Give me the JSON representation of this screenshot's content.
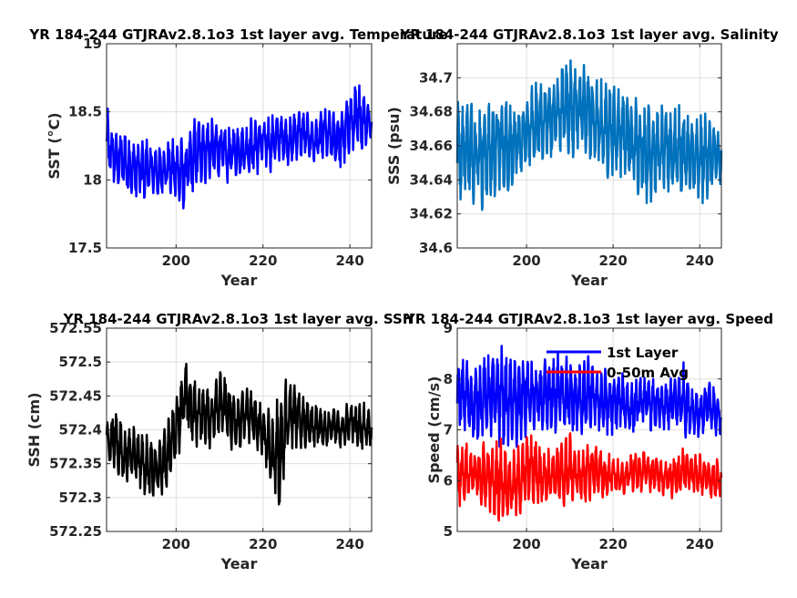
{
  "chart_data": [
    {
      "type": "line",
      "title": "YR 184-244 GTJRAv2.8.1o3 1st layer avg. Temperature",
      "xlabel": "Year",
      "ylabel": "SST (°C)",
      "xlim": [
        184,
        245
      ],
      "ylim": [
        17.5,
        19
      ],
      "xticks": [
        200,
        220,
        240
      ],
      "xtick_labels": [
        "200",
        "220",
        "240"
      ],
      "yticks": [
        17.5,
        18,
        18.5,
        19
      ],
      "ytick_labels": [
        "17.5",
        "18",
        "18.5",
        "19"
      ],
      "grid": true,
      "legend": null,
      "series": [
        {
          "color": "#0000ff",
          "x": [
            184,
            186,
            188,
            190,
            192,
            194,
            196,
            198,
            200,
            202,
            204,
            206,
            208,
            210,
            212,
            214,
            216,
            218,
            220,
            222,
            224,
            226,
            228,
            230,
            232,
            234,
            236,
            238,
            240,
            242,
            244,
            245
          ],
          "upper": [
            18.55,
            18.35,
            18.4,
            18.35,
            18.3,
            18.35,
            18.25,
            18.3,
            18.35,
            18.3,
            18.45,
            18.5,
            18.45,
            18.45,
            18.4,
            18.45,
            18.4,
            18.5,
            18.45,
            18.5,
            18.5,
            18.45,
            18.55,
            18.5,
            18.45,
            18.55,
            18.5,
            18.55,
            18.65,
            18.75,
            18.65,
            18.5
          ],
          "lower": [
            17.95,
            17.95,
            17.9,
            17.8,
            17.85,
            17.8,
            17.85,
            17.9,
            17.8,
            17.75,
            17.9,
            17.95,
            18.0,
            18.0,
            17.95,
            18.0,
            18.05,
            18.0,
            18.1,
            18.05,
            18.15,
            18.1,
            18.15,
            18.15,
            18.1,
            18.15,
            18.1,
            18.05,
            18.2,
            18.15,
            18.25,
            18.3
          ]
        }
      ]
    },
    {
      "type": "line",
      "title": "YR 184-244 GTJRAv2.8.1o3 1st layer avg. Salinity",
      "xlabel": "Year",
      "ylabel": "SSS (psu)",
      "xlim": [
        184,
        245
      ],
      "ylim": [
        34.6,
        34.72
      ],
      "xticks": [
        200,
        220,
        240
      ],
      "xtick_labels": [
        "200",
        "220",
        "240"
      ],
      "yticks": [
        34.6,
        34.62,
        34.64,
        34.66,
        34.68,
        34.7
      ],
      "ytick_labels": [
        "34.6",
        "34.62",
        "34.64",
        "34.66",
        "34.68",
        "34.7"
      ],
      "grid": true,
      "legend": null,
      "series": [
        {
          "color": "#0072bd",
          "x": [
            184,
            186,
            188,
            190,
            192,
            194,
            196,
            198,
            200,
            202,
            204,
            206,
            208,
            210,
            212,
            214,
            216,
            218,
            220,
            222,
            224,
            226,
            228,
            230,
            232,
            234,
            236,
            238,
            240,
            242,
            244,
            245
          ],
          "upper": [
            34.69,
            34.69,
            34.69,
            34.69,
            34.69,
            34.69,
            34.69,
            34.68,
            34.69,
            34.7,
            34.7,
            34.7,
            34.71,
            34.715,
            34.71,
            34.71,
            34.7,
            34.7,
            34.7,
            34.7,
            34.69,
            34.69,
            34.69,
            34.685,
            34.685,
            34.685,
            34.685,
            34.68,
            34.68,
            34.68,
            34.675,
            34.67
          ],
          "lower": [
            34.625,
            34.63,
            34.625,
            34.62,
            34.625,
            34.63,
            34.63,
            34.64,
            34.645,
            34.645,
            34.65,
            34.65,
            34.655,
            34.65,
            34.655,
            34.65,
            34.645,
            34.64,
            34.64,
            34.64,
            34.635,
            34.63,
            34.625,
            34.63,
            34.63,
            34.63,
            34.63,
            34.625,
            34.62,
            34.63,
            34.63,
            34.635
          ]
        }
      ]
    },
    {
      "type": "line",
      "title": "YR 184-244 GTJRAv2.8.1o3 1st layer avg. SSH",
      "xlabel": "Year",
      "ylabel": "SSH (cm)",
      "xlim": [
        184,
        245
      ],
      "ylim": [
        572.25,
        572.55
      ],
      "xticks": [
        200,
        220,
        240
      ],
      "xtick_labels": [
        "200",
        "220",
        "240"
      ],
      "yticks": [
        572.25,
        572.3,
        572.35,
        572.4,
        572.45,
        572.5,
        572.55
      ],
      "ytick_labels": [
        "572.25",
        "572.3",
        "572.35",
        "572.4",
        "572.45",
        "572.5",
        "572.55"
      ],
      "grid": true,
      "legend": null,
      "series": [
        {
          "color": "#000000",
          "x": [
            184,
            186,
            188,
            190,
            192,
            194,
            196,
            198,
            200,
            202,
            204,
            206,
            208,
            210,
            212,
            214,
            216,
            218,
            220,
            222,
            224,
            226,
            228,
            230,
            232,
            234,
            236,
            238,
            240,
            242,
            244,
            245
          ],
          "upper": [
            572.42,
            572.44,
            572.4,
            572.41,
            572.4,
            572.39,
            572.38,
            572.42,
            572.46,
            572.51,
            572.48,
            572.47,
            572.46,
            572.51,
            572.48,
            572.45,
            572.47,
            572.46,
            572.45,
            572.42,
            572.47,
            572.48,
            572.48,
            572.45,
            572.44,
            572.43,
            572.44,
            572.42,
            572.45,
            572.44,
            572.44,
            572.42
          ],
          "lower": [
            572.35,
            572.33,
            572.32,
            572.33,
            572.31,
            572.29,
            572.3,
            572.31,
            572.35,
            572.39,
            572.37,
            572.38,
            572.37,
            572.39,
            572.36,
            572.36,
            572.38,
            572.37,
            572.35,
            572.31,
            572.27,
            572.36,
            572.37,
            572.37,
            572.37,
            572.37,
            572.38,
            572.37,
            572.38,
            572.37,
            572.36,
            572.38
          ]
        }
      ]
    },
    {
      "type": "line",
      "title": "YR 184-244 GTJRAv2.8.1o3 1st layer avg. Speed",
      "xlabel": "Year",
      "ylabel": "Speed (cm/s)",
      "xlim": [
        184,
        245
      ],
      "ylim": [
        5,
        9
      ],
      "xticks": [
        200,
        220,
        240
      ],
      "xtick_labels": [
        "200",
        "220",
        "240"
      ],
      "yticks": [
        5,
        6,
        7,
        8,
        9
      ],
      "ytick_labels": [
        "5",
        "6",
        "7",
        "8",
        "9"
      ],
      "grid": true,
      "legend": "top-right",
      "series": [
        {
          "name": "1st Layer",
          "color": "#0000ff",
          "x": [
            184,
            186,
            188,
            190,
            192,
            194,
            196,
            198,
            200,
            202,
            204,
            206,
            208,
            210,
            212,
            214,
            216,
            218,
            220,
            222,
            224,
            226,
            228,
            230,
            232,
            234,
            236,
            238,
            240,
            242,
            244,
            245
          ],
          "upper": [
            8.4,
            8.5,
            8.3,
            8.5,
            8.6,
            8.7,
            8.5,
            8.4,
            8.6,
            8.3,
            8.4,
            8.5,
            8.6,
            8.4,
            8.3,
            8.5,
            8.2,
            8.3,
            8.1,
            8.2,
            8.0,
            8.1,
            8.2,
            7.9,
            8.0,
            8.1,
            8.4,
            7.9,
            7.8,
            8.0,
            7.8,
            7.6
          ],
          "lower": [
            6.8,
            6.9,
            6.7,
            6.8,
            6.7,
            6.6,
            6.7,
            6.6,
            6.8,
            6.9,
            6.8,
            6.7,
            7.0,
            6.8,
            6.9,
            6.8,
            7.0,
            6.8,
            6.9,
            7.0,
            6.8,
            7.0,
            6.9,
            7.0,
            6.9,
            7.0,
            6.8,
            6.9,
            6.8,
            7.0,
            6.8,
            6.9
          ]
        },
        {
          "name": "0-50m Avg",
          "color": "#ff0000",
          "x": [
            184,
            186,
            188,
            190,
            192,
            194,
            196,
            198,
            200,
            202,
            204,
            206,
            208,
            210,
            212,
            214,
            216,
            218,
            220,
            222,
            224,
            226,
            228,
            230,
            232,
            234,
            236,
            238,
            240,
            242,
            244,
            245
          ],
          "upper": [
            6.8,
            6.9,
            6.6,
            6.8,
            6.7,
            6.9,
            6.5,
            6.7,
            6.9,
            7.0,
            6.6,
            6.7,
            6.8,
            7.0,
            6.6,
            6.7,
            6.8,
            6.5,
            6.6,
            6.4,
            6.5,
            6.7,
            6.5,
            6.6,
            6.4,
            6.5,
            6.7,
            6.5,
            6.6,
            6.4,
            6.5,
            6.3
          ],
          "lower": [
            5.5,
            5.4,
            5.6,
            5.4,
            5.3,
            5.1,
            5.3,
            5.2,
            5.5,
            5.4,
            5.5,
            5.6,
            5.4,
            5.5,
            5.6,
            5.5,
            5.7,
            5.6,
            5.7,
            5.6,
            5.8,
            5.7,
            5.8,
            5.7,
            5.7,
            5.6,
            5.7,
            5.8,
            5.6,
            5.7,
            5.5,
            5.6
          ]
        }
      ]
    }
  ]
}
